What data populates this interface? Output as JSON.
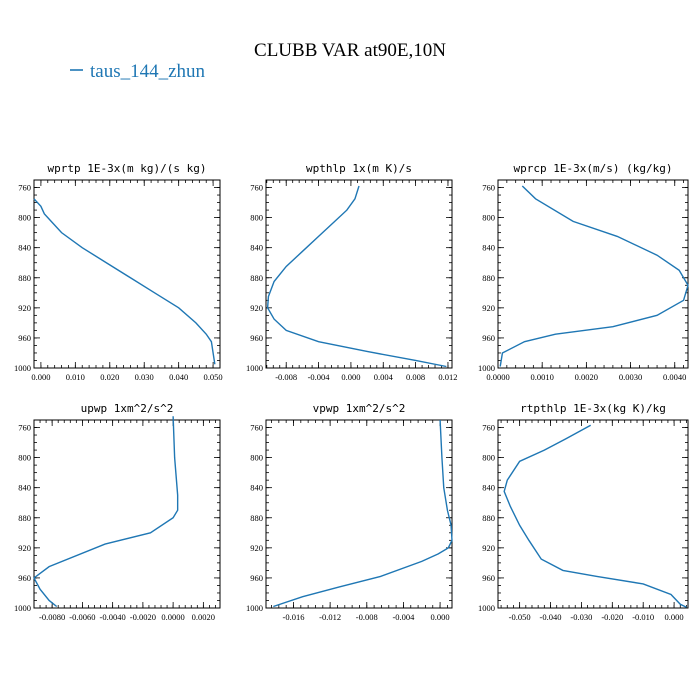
{
  "figure": {
    "title": "CLUBB VAR at90E,10N",
    "legend": {
      "label": "taus_144_zhun",
      "color": "#1f77b4"
    }
  },
  "chart_data": [
    {
      "type": "line",
      "title": "wprtp  1E-3x(m kg)/(s kg)",
      "xlim": [
        -0.002,
        0.052
      ],
      "ylim": [
        1000,
        750
      ],
      "x_ticks": [
        0.0,
        0.01,
        0.02,
        0.03,
        0.04,
        0.05
      ],
      "x_tick_labels": [
        "0.000",
        "0.010",
        "0.020",
        "0.030",
        "0.040",
        "0.050"
      ],
      "y_ticks": [
        760,
        800,
        840,
        880,
        920,
        960,
        1000
      ],
      "y_tick_labels": [
        "760",
        "800",
        "840",
        "880",
        "920",
        "960",
        "1000"
      ],
      "series": [
        {
          "color": "#1f77b4",
          "x": [
            -0.002,
            0.0,
            0.001,
            0.003,
            0.006,
            0.012,
            0.019,
            0.026,
            0.033,
            0.04,
            0.045,
            0.048,
            0.0495,
            0.05,
            0.0505
          ],
          "y": [
            775,
            785,
            795,
            805,
            820,
            840,
            860,
            880,
            900,
            920,
            940,
            955,
            965,
            980,
            995
          ]
        }
      ]
    },
    {
      "type": "line",
      "title": "wpthlp  1x(m K)/s",
      "xlim": [
        -0.0105,
        0.0125
      ],
      "ylim": [
        1000,
        750
      ],
      "x_ticks": [
        -0.008,
        -0.004,
        0.0,
        0.004,
        0.008,
        0.012
      ],
      "x_tick_labels": [
        "-0.008",
        "-0.004",
        "0.000",
        "0.004",
        "0.008",
        "0.012"
      ],
      "y_ticks": [
        760,
        800,
        840,
        880,
        920,
        960,
        1000
      ],
      "y_tick_labels": [
        "760",
        "800",
        "840",
        "880",
        "920",
        "960",
        "1000"
      ],
      "series": [
        {
          "color": "#1f77b4",
          "x": [
            0.001,
            0.0005,
            -0.0005,
            -0.002,
            -0.004,
            -0.006,
            -0.008,
            -0.0095,
            -0.0102,
            -0.0103,
            -0.0095,
            -0.008,
            -0.004,
            0.002,
            0.008,
            0.0118
          ],
          "y": [
            758,
            775,
            790,
            805,
            825,
            845,
            865,
            885,
            905,
            920,
            935,
            950,
            965,
            978,
            990,
            998
          ]
        }
      ]
    },
    {
      "type": "line",
      "title": "wprcp  1E-3x(m/s) (kg/kg)",
      "xlim": [
        0.0,
        0.0043
      ],
      "ylim": [
        1000,
        750
      ],
      "x_ticks": [
        0.0,
        0.001,
        0.002,
        0.003,
        0.004
      ],
      "x_tick_labels": [
        "0.0000",
        "0.0010",
        "0.0020",
        "0.0030",
        "0.0040"
      ],
      "y_ticks": [
        760,
        800,
        840,
        880,
        920,
        960,
        1000
      ],
      "y_tick_labels": [
        "760",
        "800",
        "840",
        "880",
        "920",
        "960",
        "1000"
      ],
      "series": [
        {
          "color": "#1f77b4",
          "x": [
            0.00055,
            0.00085,
            0.0017,
            0.0027,
            0.0036,
            0.0041,
            0.0043,
            0.0042,
            0.0036,
            0.0026,
            0.0013,
            0.0006,
            0.0001,
            5e-05
          ],
          "y": [
            758,
            775,
            805,
            825,
            850,
            870,
            890,
            910,
            930,
            945,
            955,
            965,
            980,
            998
          ]
        }
      ]
    },
    {
      "type": "line",
      "title": "upwp  1xm^2/s^2",
      "xlim": [
        -0.0092,
        0.0031
      ],
      "ylim": [
        1000,
        750
      ],
      "x_ticks": [
        -0.008,
        -0.006,
        -0.004,
        -0.002,
        0.0,
        0.002
      ],
      "x_tick_labels": [
        "-0.0080",
        "-0.0060",
        "-0.0040",
        "-0.0020",
        "0.0000",
        "0.0020"
      ],
      "y_ticks": [
        760,
        800,
        840,
        880,
        920,
        960,
        1000
      ],
      "y_tick_labels": [
        "760",
        "800",
        "840",
        "880",
        "920",
        "960",
        "1000"
      ],
      "series": [
        {
          "color": "#1f77b4",
          "x": [
            0.0,
            0.0001,
            0.0003,
            0.0003,
            0.0,
            -0.0015,
            -0.0045,
            -0.0082,
            -0.0092,
            -0.0088,
            -0.0082,
            -0.0077
          ],
          "y": [
            745,
            800,
            850,
            870,
            880,
            900,
            915,
            945,
            960,
            975,
            990,
            998
          ]
        }
      ]
    },
    {
      "type": "line",
      "title": "vpwp  1xm^2/s^2",
      "xlim": [
        -0.019,
        0.0013
      ],
      "ylim": [
        1000,
        750
      ],
      "x_ticks": [
        -0.016,
        -0.012,
        -0.008,
        -0.004,
        0.0
      ],
      "x_tick_labels": [
        "-0.016",
        "-0.012",
        "-0.008",
        "-0.004",
        "0.000"
      ],
      "y_ticks": [
        760,
        800,
        840,
        880,
        920,
        960,
        1000
      ],
      "y_tick_labels": [
        "760",
        "800",
        "840",
        "880",
        "920",
        "960",
        "1000"
      ],
      "series": [
        {
          "color": "#1f77b4",
          "x": [
            0.0,
            0.0002,
            0.0004,
            0.0008,
            0.0012,
            0.0013,
            0.0009,
            -0.0002,
            -0.002,
            -0.0065,
            -0.011,
            -0.015,
            -0.0182
          ],
          "y": [
            750,
            800,
            840,
            870,
            890,
            910,
            920,
            928,
            938,
            958,
            972,
            985,
            998
          ]
        }
      ]
    },
    {
      "type": "line",
      "title": "rtpthlp  1E-3x(kg K)/kg",
      "xlim": [
        -0.057,
        0.0045
      ],
      "ylim": [
        1000,
        750
      ],
      "x_ticks": [
        -0.05,
        -0.04,
        -0.03,
        -0.02,
        -0.01,
        0.0
      ],
      "x_tick_labels": [
        "-0.050",
        "-0.040",
        "-0.030",
        "-0.020",
        "-0.010",
        "0.000"
      ],
      "y_ticks": [
        760,
        800,
        840,
        880,
        920,
        960,
        1000
      ],
      "y_tick_labels": [
        "760",
        "800",
        "840",
        "880",
        "920",
        "960",
        "1000"
      ],
      "series": [
        {
          "color": "#1f77b4",
          "x": [
            -0.027,
            -0.035,
            -0.042,
            -0.05,
            -0.054,
            -0.055,
            -0.053,
            -0.05,
            -0.047,
            -0.043,
            -0.036,
            -0.025,
            -0.01,
            -0.001,
            0.002,
            0.004
          ],
          "y": [
            757,
            775,
            790,
            805,
            830,
            845,
            865,
            890,
            910,
            935,
            950,
            958,
            968,
            982,
            995,
            999
          ]
        }
      ]
    }
  ]
}
